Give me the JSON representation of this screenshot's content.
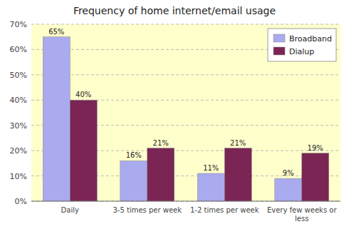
{
  "chart_data": {
    "type": "bar",
    "title": "Frequency of home internet/email usage",
    "categories": [
      "Daily",
      "3-5 times per week",
      "1-2 times per week",
      "Every few weeks or\nless"
    ],
    "series": [
      {
        "name": "Broadband",
        "color": "#aaaaee",
        "values": [
          65,
          16,
          11,
          9
        ],
        "value_labels": [
          "65%",
          "16%",
          "11%",
          "9%"
        ]
      },
      {
        "name": "Dialup",
        "color": "#7b2555",
        "values": [
          40,
          21,
          21,
          19
        ],
        "value_labels": [
          "40%",
          "21%",
          "21%",
          "19%"
        ]
      }
    ],
    "ylim": [
      0,
      70
    ],
    "yticks": [
      {
        "value": 0,
        "label": "0%"
      },
      {
        "value": 10,
        "label": "10%"
      },
      {
        "value": 20,
        "label": "20%"
      },
      {
        "value": 30,
        "label": "30%"
      },
      {
        "value": 40,
        "label": "40%"
      },
      {
        "value": 50,
        "label": "50%"
      },
      {
        "value": 60,
        "label": "60%"
      },
      {
        "value": 70,
        "label": "70%"
      }
    ],
    "grid": true,
    "legend": "upper right",
    "data_labels": true
  }
}
